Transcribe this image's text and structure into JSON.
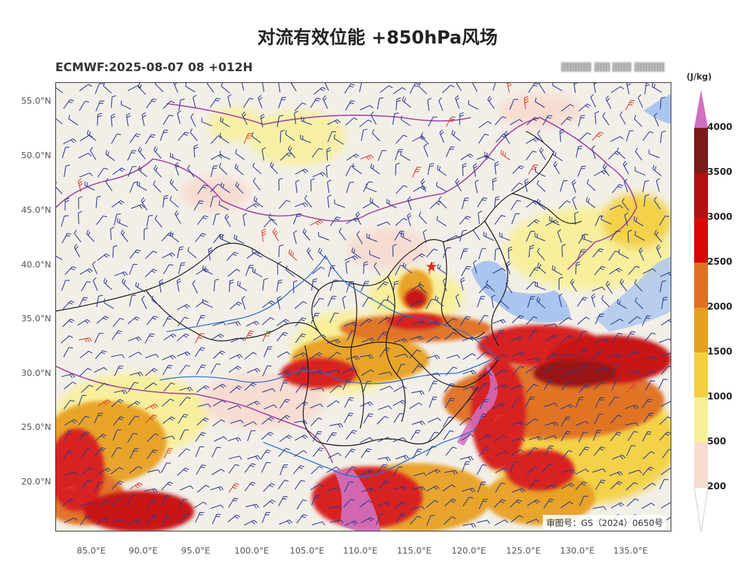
{
  "header": {
    "title": "对流有效位能 +850hPa风场",
    "subtitle": "ECMWF:2025-08-07 08 +012H"
  },
  "map": {
    "lat_labels": [
      "55.0°N",
      "50.0°N",
      "45.0°N",
      "40.0°N",
      "35.0°N",
      "30.0°N",
      "25.0°N",
      "20.0°N"
    ],
    "lon_labels": [
      "85.0°E",
      "90.0°E",
      "95.0°E",
      "100.0°E",
      "105.0°E",
      "110.0°E",
      "115.0°E",
      "120.0°E",
      "125.0°E",
      "130.0°E",
      "135.0°E"
    ],
    "approval": "审图号：GS（2024）0650号",
    "colors": {
      "land": "#f2efe9",
      "water": "#aac6ee",
      "province_border": "#111111",
      "country_border": "#a040a0",
      "river": "#2a6fc9",
      "wind_barb": "#2b3a8c",
      "strong_wind_barb": "#d8402a",
      "marker": "#e8241c"
    }
  },
  "colorbar": {
    "unit": "(J/kg)",
    "labels": [
      "4000",
      "3500",
      "3000",
      "2500",
      "2000",
      "1500",
      "1000",
      "500",
      "200"
    ],
    "colors": [
      "#7a1a1a",
      "#b01010",
      "#d80808",
      "#e07020",
      "#e8a020",
      "#f4d040",
      "#f8f098",
      "#f8dcd0",
      "#d070c0"
    ]
  }
}
